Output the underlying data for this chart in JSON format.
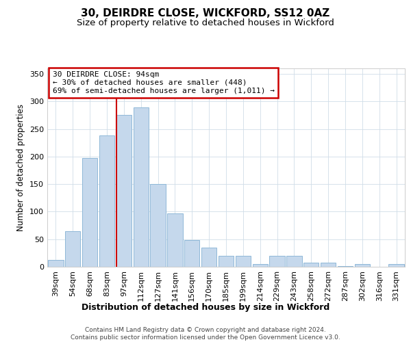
{
  "title": "30, DEIRDRE CLOSE, WICKFORD, SS12 0AZ",
  "subtitle": "Size of property relative to detached houses in Wickford",
  "xlabel": "Distribution of detached houses by size in Wickford",
  "ylabel": "Number of detached properties",
  "footer_line1": "Contains HM Land Registry data © Crown copyright and database right 2024.",
  "footer_line2": "Contains public sector information licensed under the Open Government Licence v3.0.",
  "bar_labels": [
    "39sqm",
    "54sqm",
    "68sqm",
    "83sqm",
    "97sqm",
    "112sqm",
    "127sqm",
    "141sqm",
    "156sqm",
    "170sqm",
    "185sqm",
    "199sqm",
    "214sqm",
    "229sqm",
    "243sqm",
    "258sqm",
    "272sqm",
    "287sqm",
    "302sqm",
    "316sqm",
    "331sqm"
  ],
  "bar_values": [
    13,
    65,
    197,
    238,
    276,
    289,
    150,
    97,
    49,
    35,
    20,
    20,
    5,
    20,
    20,
    8,
    8,
    1,
    5,
    0,
    5
  ],
  "bar_color": "#c5d8ec",
  "bar_edge_color": "#8fb8d8",
  "bg_color": "#ffffff",
  "plot_bg_color": "#ffffff",
  "red_line_color": "#cc0000",
  "red_line_bar_index": 4,
  "annotation_line1": "30 DEIRDRE CLOSE: 94sqm",
  "annotation_line2": "← 30% of detached houses are smaller (448)",
  "annotation_line3": "69% of semi-detached houses are larger (1,011) →",
  "annotation_box_edge_color": "#cc0000",
  "ylim": [
    0,
    360
  ],
  "yticks": [
    0,
    50,
    100,
    150,
    200,
    250,
    300,
    350
  ],
  "grid_color": "#d0dde8",
  "title_fontsize": 11,
  "subtitle_fontsize": 9.5,
  "ylabel_fontsize": 8.5,
  "xlabel_fontsize": 9,
  "tick_fontsize": 8,
  "footer_fontsize": 6.5
}
